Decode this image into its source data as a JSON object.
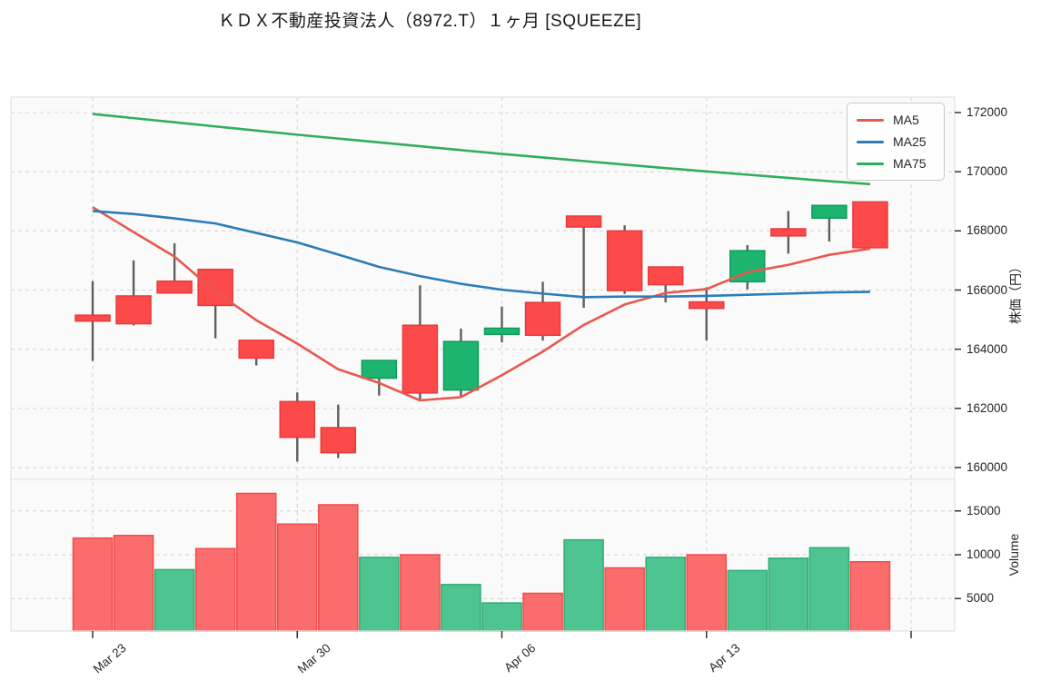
{
  "chart_data": {
    "type": "candlestick",
    "title": "ＫＤＸ不動産投資法人（8972.T）１ヶ月 [SQUEEZE]",
    "legend": {
      "items": [
        "MA5",
        "MA25",
        "MA75"
      ],
      "position": "top-right"
    },
    "price_axis": {
      "label": "株価（円）",
      "side": "right",
      "ticks": [
        172000,
        170000,
        168000,
        166000,
        164000,
        162000,
        160000
      ],
      "range": [
        159600,
        172520
      ]
    },
    "volume_axis": {
      "label": "Volume",
      "side": "right",
      "ticks": [
        15000,
        10000,
        5000
      ],
      "range": [
        1300,
        18600
      ]
    },
    "x_axis": {
      "tick_labels": [
        "Mar 23",
        "Mar 30",
        "Apr 06",
        "Apr 13",
        ""
      ],
      "tick_candle_indices": [
        0,
        5,
        10,
        15,
        20
      ],
      "num_candles": 20,
      "grid": "dashed"
    },
    "candles": [
      {
        "open": 165150,
        "high": 166300,
        "low": 163600,
        "close": 164950,
        "volume": 11900,
        "volume_color": "down"
      },
      {
        "open": 165800,
        "high": 167000,
        "low": 164800,
        "close": 164860,
        "volume": 12200,
        "volume_color": "down"
      },
      {
        "open": 166300,
        "high": 167580,
        "low": 165880,
        "close": 165900,
        "volume": 8300,
        "volume_color": "up"
      },
      {
        "open": 166700,
        "high": 166700,
        "low": 164370,
        "close": 165480,
        "volume": 10700,
        "volume_color": "down"
      },
      {
        "open": 164300,
        "high": 164300,
        "low": 163450,
        "close": 163700,
        "volume": 17000,
        "volume_color": "down"
      },
      {
        "open": 162230,
        "high": 162540,
        "low": 160200,
        "close": 161020,
        "volume": 13500,
        "volume_color": "down"
      },
      {
        "open": 161350,
        "high": 162130,
        "low": 160320,
        "close": 160500,
        "volume": 15700,
        "volume_color": "down"
      },
      {
        "open": 163020,
        "high": 163620,
        "low": 162430,
        "close": 163620,
        "volume": 9700,
        "volume_color": "up"
      },
      {
        "open": 164810,
        "high": 166160,
        "low": 162240,
        "close": 162520,
        "volume": 10000,
        "volume_color": "down"
      },
      {
        "open": 162620,
        "high": 164700,
        "low": 162390,
        "close": 164260,
        "volume": 6600,
        "volume_color": "up"
      },
      {
        "open": 164500,
        "high": 165440,
        "low": 164230,
        "close": 164710,
        "volume": 4500,
        "volume_color": "up"
      },
      {
        "open": 165580,
        "high": 166280,
        "low": 164290,
        "close": 164470,
        "volume": 5600,
        "volume_color": "down"
      },
      {
        "open": 168500,
        "high": 168500,
        "low": 165400,
        "close": 168130,
        "volume": 11700,
        "volume_color": "up"
      },
      {
        "open": 168000,
        "high": 168190,
        "low": 165870,
        "close": 165980,
        "volume": 8500,
        "volume_color": "down"
      },
      {
        "open": 166780,
        "high": 166780,
        "low": 165580,
        "close": 166180,
        "volume": 9700,
        "volume_color": "up"
      },
      {
        "open": 165600,
        "high": 166090,
        "low": 164290,
        "close": 165380,
        "volume": 10000,
        "volume_color": "down"
      },
      {
        "open": 166280,
        "high": 167520,
        "low": 166020,
        "close": 167330,
        "volume": 8200,
        "volume_color": "up"
      },
      {
        "open": 168070,
        "high": 168670,
        "low": 167230,
        "close": 167830,
        "volume": 9600,
        "volume_color": "up"
      },
      {
        "open": 168430,
        "high": 168860,
        "low": 167640,
        "close": 168860,
        "volume": 10800,
        "volume_color": "up"
      },
      {
        "open": 168980,
        "high": 168980,
        "low": 167430,
        "close": 167430,
        "volume": 9200,
        "volume_color": "down"
      }
    ],
    "series": [
      {
        "name": "MA5",
        "color": "#e8584e",
        "values": [
          168800,
          167960,
          167130,
          165950,
          164980,
          164190,
          163320,
          162860,
          162270,
          162380,
          163120,
          163920,
          164820,
          165510,
          165900,
          166030,
          166600,
          166850,
          167190,
          167400
        ]
      },
      {
        "name": "MA25",
        "color": "#2b7cb8",
        "values": [
          168670,
          168570,
          168420,
          168250,
          167930,
          167610,
          167200,
          166780,
          166470,
          166210,
          166010,
          165880,
          165760,
          165780,
          165780,
          165800,
          165840,
          165880,
          165920,
          165940
        ]
      },
      {
        "name": "MA75",
        "color": "#2eae5e",
        "values": [
          171950,
          171810,
          171670,
          171530,
          171390,
          171250,
          171120,
          170990,
          170860,
          170730,
          170600,
          170480,
          170360,
          170240,
          170120,
          170010,
          169900,
          169790,
          169680,
          169580
        ]
      }
    ],
    "colors": {
      "plot_bg": "#fafafa",
      "grid": "#d9d9d9",
      "axis_border": "#e3e3e3",
      "tick_mark": "#333333",
      "text": "#262626",
      "candle_up_fill": "#1db470",
      "candle_up_border": "#119a5d",
      "candle_down_fill": "#fc4a4a",
      "candle_down_border": "#e83a3a",
      "wick": "#5f5f5f",
      "vol_up_fill": "#4ec590",
      "vol_up_border": "#30ac75",
      "vol_down_fill": "#fb6d6d",
      "vol_down_border": "#f24b4b",
      "ma5": "#e8584e",
      "ma25": "#2b7cb8",
      "ma75": "#2eae5e"
    }
  }
}
